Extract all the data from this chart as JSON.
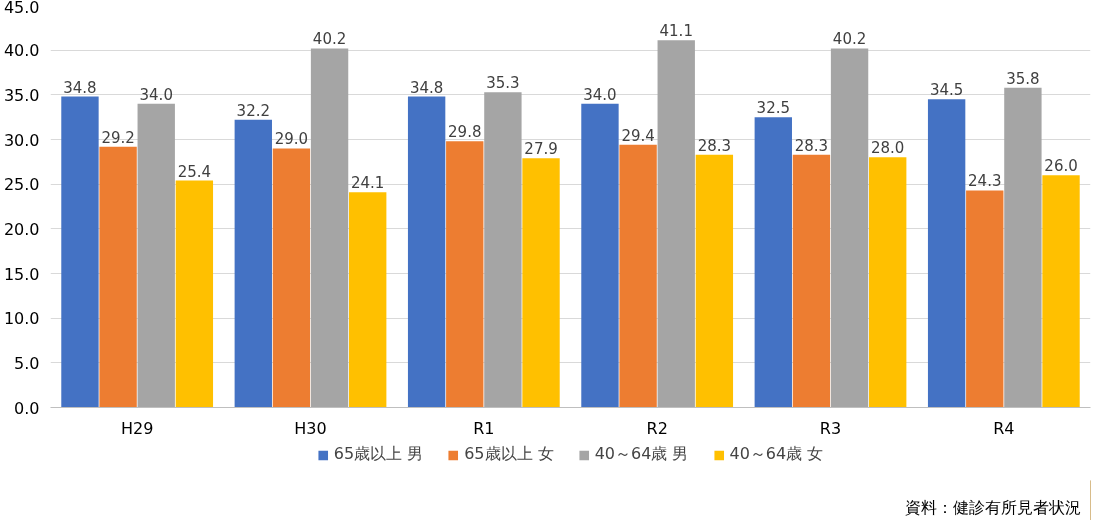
{
  "chart_data": {
    "type": "bar",
    "categories": [
      "H29",
      "H30",
      "R1",
      "R2",
      "R3",
      "R4"
    ],
    "series": [
      {
        "name": "65歳以上 男",
        "color": "#4472c4",
        "values": [
          34.8,
          32.2,
          34.8,
          34.0,
          32.5,
          34.5
        ]
      },
      {
        "name": "65歳以上 女",
        "color": "#ed7d31",
        "values": [
          29.2,
          29.0,
          29.8,
          29.4,
          28.3,
          24.3
        ]
      },
      {
        "name": "40～64歳 男",
        "color": "#a5a5a5",
        "values": [
          34.0,
          40.2,
          35.3,
          41.1,
          40.2,
          35.8
        ]
      },
      {
        "name": "40～64歳 女",
        "color": "#ffc000",
        "values": [
          25.4,
          24.1,
          27.9,
          28.3,
          28.0,
          26.0
        ]
      }
    ],
    "value_labels": [
      [
        "34.8",
        "32.2",
        "34.8",
        "34.0",
        "32.5",
        "34.5"
      ],
      [
        "29.2",
        "29.0",
        "29.8",
        "29.4",
        "28.3",
        "24.3"
      ],
      [
        "34.0",
        "40.2",
        "35.3",
        "41.1",
        "40.2",
        "35.8"
      ],
      [
        "25.4",
        "24.1",
        "27.9",
        "28.3",
        "28.0",
        "26.0"
      ]
    ],
    "ylim": [
      0,
      45
    ],
    "yticks": [
      {
        "value": 0,
        "label": "0.0"
      },
      {
        "value": 5,
        "label": "5.0"
      },
      {
        "value": 10,
        "label": "10.0"
      },
      {
        "value": 15,
        "label": "15.0"
      },
      {
        "value": 20,
        "label": "20.0"
      },
      {
        "value": 25,
        "label": "25.0"
      },
      {
        "value": 30,
        "label": "30.0"
      },
      {
        "value": 35,
        "label": "35.0"
      },
      {
        "value": 40,
        "label": "40.0"
      },
      {
        "value": 45,
        "label": "45.0"
      }
    ],
    "grid": "y",
    "legend": "bottom",
    "annotations": [
      "資料：健診有所見者状況"
    ]
  }
}
